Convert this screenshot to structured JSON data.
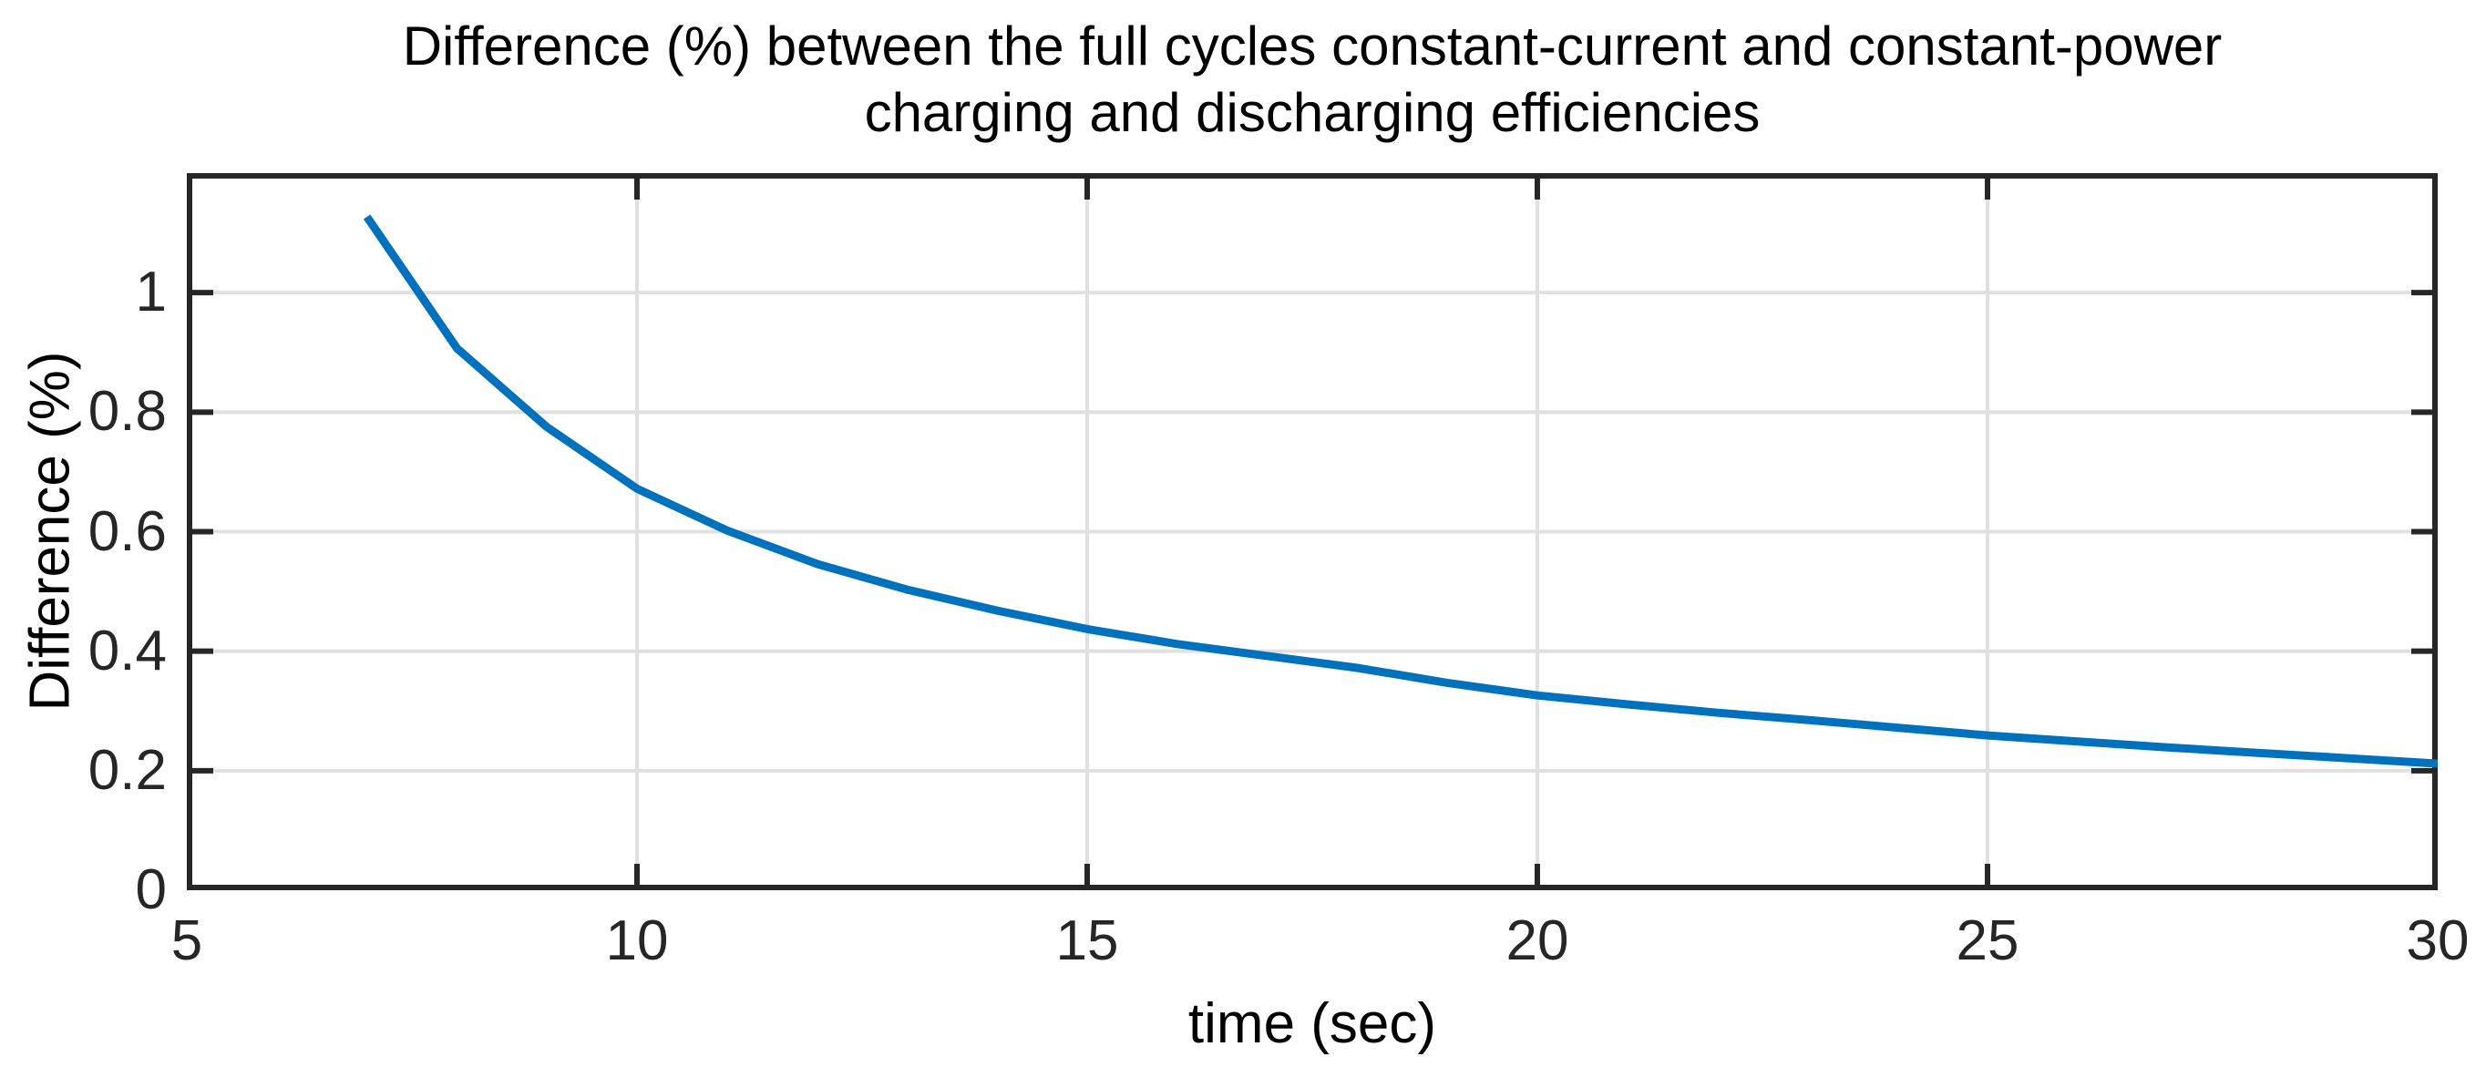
{
  "figure": {
    "title_line1": "Difference (%) between the full cycles constant-current and constant-power",
    "title_line2": "charging and discharging efficiencies",
    "background_color": "#ffffff"
  },
  "chart_data": {
    "type": "line",
    "title": "Difference (%) between the full cycles constant-current and constant-power charging and discharging efficiencies",
    "xlabel": "time (sec)",
    "ylabel": "Difference (%)",
    "xlim": [
      5,
      30
    ],
    "ylim": [
      0,
      1.2
    ],
    "xticks": [
      5,
      10,
      15,
      20,
      25,
      30
    ],
    "xtick_labels": [
      "5",
      "10",
      "15",
      "20",
      "25",
      "30"
    ],
    "yticks": [
      0,
      0.2,
      0.4,
      0.6,
      0.8,
      1
    ],
    "ytick_labels": [
      "0",
      "0.2",
      "0.4",
      "0.6",
      "0.8",
      "1"
    ],
    "grid": true,
    "legend": "none",
    "tick_direction": "in",
    "series": [
      {
        "name": "difference-percent",
        "color": "#0072BD",
        "line_width": 9,
        "x": [
          7,
          8,
          9,
          10,
          11,
          12,
          13,
          14,
          15,
          16,
          17,
          18,
          19,
          20,
          21,
          22,
          23,
          24,
          25,
          26,
          27,
          28,
          29,
          30
        ],
        "y": [
          1.127,
          0.907,
          0.775,
          0.672,
          0.602,
          0.546,
          0.503,
          0.468,
          0.437,
          0.412,
          0.392,
          0.372,
          0.347,
          0.326,
          0.311,
          0.297,
          0.285,
          0.272,
          0.259,
          0.249,
          0.239,
          0.23,
          0.221,
          0.212
        ]
      }
    ],
    "style": {
      "axis_color": "#262626",
      "grid_color": "#e0e0e0",
      "axis_line_width": 6,
      "grid_line_width": 4,
      "tick_length": 26,
      "text_color": "#000000"
    }
  }
}
